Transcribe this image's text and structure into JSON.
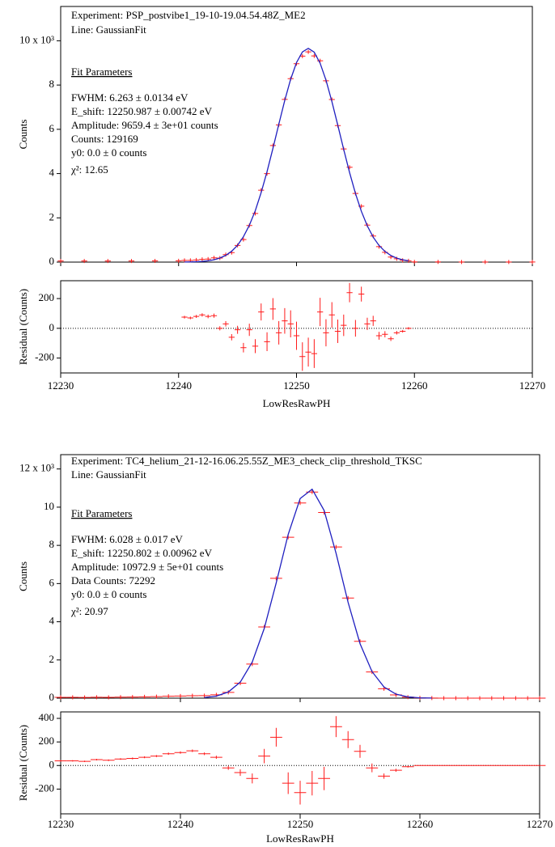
{
  "chart_data": [
    {
      "type": "fit",
      "annotations": {
        "experiment": "Experiment: PSP_postvibe1_19-10-19.04.54.48Z_ME2",
        "line": "Line: GaussianFit",
        "heading": "Fit Parameters",
        "params": [
          "FWHM: 6.263 ± 0.0134 eV",
          "E_shift: 12250.987 ± 0.00742 eV",
          "Amplitude: 9659.4 ± 3e+01 counts",
          "Counts: 129169",
          "y0: 0.0 ± 0 counts",
          "χ²: 12.65"
        ]
      },
      "x_label": "LowResRawPH",
      "xlim": [
        12230,
        12270
      ],
      "xticks": [
        12230,
        12240,
        12250,
        12260,
        12270
      ],
      "main": {
        "y_label": "Counts",
        "ylim": [
          0,
          11550
        ],
        "yticks": [
          {
            "value": 0,
            "label": "0"
          },
          {
            "value": 2000,
            "label": "2"
          },
          {
            "value": 4000,
            "label": "4"
          },
          {
            "value": 6000,
            "label": "6"
          },
          {
            "value": 8000,
            "label": "8"
          },
          {
            "value": 10000,
            "label": "10 x 10³"
          }
        ],
        "x": [
          12230,
          12232,
          12234,
          12236,
          12238,
          12240,
          12240.5,
          12241,
          12241.5,
          12242,
          12242.5,
          12243,
          12243.5,
          12244,
          12244.5,
          12245,
          12245.5,
          12246,
          12246.5,
          12247,
          12247.5,
          12248,
          12248.5,
          12249,
          12249.5,
          12250,
          12250.5,
          12251,
          12251.5,
          12252,
          12252.5,
          12253,
          12253.5,
          12254,
          12254.5,
          12255,
          12255.5,
          12256,
          12256.5,
          12257,
          12257.5,
          12258,
          12258.5,
          12259,
          12259.5,
          12260,
          12262,
          12264,
          12266,
          12268,
          12270
        ],
        "series": [
          {
            "marker": "cross",
            "color": "#ff1a1a",
            "values": [
              50,
              48,
              52,
              50,
              55,
              60,
              79,
              78,
              97,
              122,
              139,
              191,
              184,
              336,
              431,
              752,
              1019,
              1654,
              2198,
              3249,
              3996,
              5267,
              6202,
              7351,
              8286,
              8965,
              9306,
              9499,
              9317,
              9098,
              8191,
              7346,
              6168,
              5114,
              4285,
              3101,
              2525,
              1670,
              1180,
              701,
              443,
              230,
              150,
              84,
              58,
              10,
              8,
              6,
              5,
              5,
              5
            ]
          },
          {
            "marker": "line",
            "color": "#1f1fc0",
            "values": [
              null,
              null,
              null,
              null,
              null,
              null,
              4,
              8,
              17,
              32,
              59,
              106,
              184,
              306,
              491,
              762,
              1149,
              1664,
              2318,
              3139,
              4086,
              5137,
              6232,
              7301,
              8256,
              9015,
              9496,
              9659,
              9487,
              8988,
              8221,
              7256,
              6188,
              5094,
              4045,
              3101,
              2295,
              1640,
              1130,
              751,
              483,
              300,
              180,
              104,
              58,
              null,
              null,
              null,
              null,
              null,
              null
            ]
          }
        ]
      },
      "residual": {
        "y_label": "Residual (Counts)",
        "ylim": [
          -300,
          320
        ],
        "yticks": [
          -200,
          0,
          200
        ],
        "color": "#ff1a1a",
        "x": [
          12240.5,
          12241,
          12241.5,
          12242,
          12242.5,
          12243,
          12243.5,
          12244,
          12244.5,
          12245,
          12245.5,
          12246,
          12246.5,
          12247,
          12247.5,
          12248,
          12248.5,
          12249,
          12249.5,
          12250,
          12250.5,
          12251,
          12251.5,
          12252,
          12252.5,
          12253,
          12253.5,
          12254,
          12254.5,
          12255,
          12255.5,
          12256,
          12256.5,
          12257,
          12257.5,
          12258,
          12258.5,
          12259,
          12259.5
        ],
        "values": [
          75,
          70,
          80,
          90,
          80,
          85,
          0,
          30,
          -60,
          -10,
          -130,
          -10,
          -120,
          110,
          -90,
          130,
          -30,
          50,
          30,
          -50,
          -190,
          -160,
          -170,
          110,
          -30,
          90,
          -20,
          20,
          240,
          0,
          230,
          30,
          50,
          -50,
          -40,
          -70,
          -30,
          -20,
          0
        ],
        "errors": [
          9,
          9,
          10,
          11,
          12,
          14,
          14,
          18,
          21,
          27,
          32,
          41,
          47,
          57,
          63,
          73,
          79,
          86,
          91,
          95,
          96,
          97,
          97,
          95,
          91,
          86,
          79,
          72,
          65,
          56,
          50,
          41,
          34,
          26,
          21,
          15,
          12,
          9,
          8
        ]
      }
    },
    {
      "type": "fit",
      "annotations": {
        "experiment": "Experiment: TC4_helium_21-12-16.06.25.55Z_ME3_check_clip_threshold_TKSC",
        "line": "Line: GaussianFit",
        "heading": "Fit Parameters",
        "params": [
          "FWHM: 6.028 ± 0.017 eV",
          "E_shift: 12250.802 ± 0.00962 eV",
          "Amplitude: 10972.9 ± 5e+01 counts",
          "Data Counts: 72292",
          "y0: 0.0 ± 0 counts",
          "χ²: 20.97"
        ]
      },
      "x_label": "LowResRawPH",
      "xlim": [
        12230,
        12270
      ],
      "xticks": [
        12230,
        12240,
        12250,
        12260,
        12270
      ],
      "main": {
        "y_label": "Counts",
        "ylim": [
          0,
          12750
        ],
        "yticks": [
          {
            "value": 0,
            "label": "0"
          },
          {
            "value": 2000,
            "label": "2"
          },
          {
            "value": 4000,
            "label": "4"
          },
          {
            "value": 6000,
            "label": "6"
          },
          {
            "value": 8000,
            "label": "8"
          },
          {
            "value": 10000,
            "label": "10"
          },
          {
            "value": 12000,
            "label": "12 x 10³"
          }
        ],
        "x": [
          12230,
          12231,
          12232,
          12233,
          12234,
          12235,
          12236,
          12237,
          12238,
          12239,
          12240,
          12241,
          12242,
          12243,
          12244,
          12245,
          12246,
          12247,
          12248,
          12249,
          12250,
          12251,
          12252,
          12253,
          12254,
          12255,
          12256,
          12257,
          12258,
          12259,
          12260,
          12261,
          12262,
          12263,
          12264,
          12265,
          12266,
          12267,
          12268,
          12269,
          12270
        ],
        "series": [
          {
            "marker": "cross",
            "color": "#ff1a1a",
            "values": [
              40,
              40,
              35,
              50,
              45,
              55,
              60,
              70,
              80,
              100,
              110,
              125,
              130,
              176,
              302,
              781,
              1783,
              3728,
              6274,
              8422,
              10220,
              10790,
              9722,
              7914,
              5244,
              2975,
              1374,
              495,
              170,
              55,
              17,
              4,
              0,
              0,
              0,
              0,
              0,
              0,
              0,
              0,
              0
            ]
          },
          {
            "marker": "line",
            "color": "#1f1fc0",
            "values": [
              null,
              null,
              null,
              null,
              null,
              null,
              null,
              null,
              null,
              null,
              null,
              null,
              30,
              106,
              322,
              841,
              1893,
              3648,
              6034,
              8572,
              10450,
              10940,
              9832,
              7584,
              5024,
              2855,
              1394,
              585,
              210,
              65,
              17,
              4,
              null,
              null,
              null,
              null,
              null,
              null,
              null,
              null,
              null
            ]
          }
        ]
      },
      "residual": {
        "y_label": "Residual (Counts)",
        "ylim": [
          -410,
          455
        ],
        "yticks": [
          -200,
          0,
          200,
          400
        ],
        "color": "#ff1a1a",
        "x": [
          12230,
          12231,
          12232,
          12233,
          12234,
          12235,
          12236,
          12237,
          12238,
          12239,
          12240,
          12241,
          12242,
          12243,
          12244,
          12245,
          12246,
          12247,
          12248,
          12249,
          12250,
          12251,
          12252,
          12253,
          12254,
          12255,
          12256,
          12257,
          12258,
          12259,
          12260,
          12261,
          12262,
          12263,
          12264,
          12265,
          12266,
          12267,
          12268,
          12269,
          12270
        ],
        "values": [
          40,
          40,
          35,
          50,
          45,
          55,
          60,
          70,
          80,
          100,
          110,
          125,
          100,
          70,
          -20,
          -60,
          -110,
          80,
          240,
          -150,
          -230,
          -150,
          -110,
          330,
          220,
          120,
          -20,
          -90,
          -40,
          -10,
          0,
          0,
          0,
          0,
          0,
          0,
          0,
          0,
          0,
          0,
          0
        ],
        "errors": [
          6,
          6,
          6,
          7,
          7,
          7,
          8,
          8,
          9,
          10,
          10,
          11,
          11,
          13,
          17,
          28,
          42,
          61,
          79,
          92,
          101,
          104,
          99,
          89,
          72,
          55,
          37,
          22,
          13,
          7,
          1,
          1,
          1,
          1,
          1,
          1,
          1,
          1,
          1,
          1,
          1
        ]
      }
    }
  ]
}
